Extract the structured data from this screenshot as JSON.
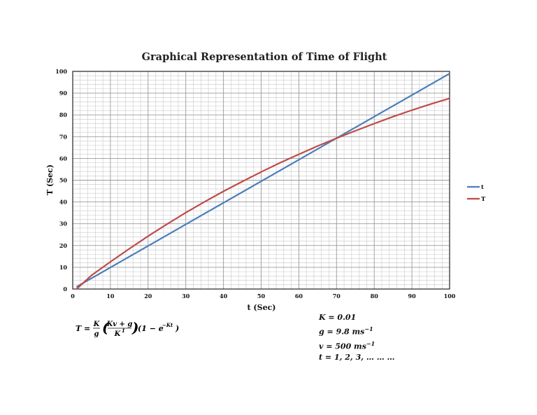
{
  "chart_data": {
    "type": "line",
    "title": "Graphical Representation of Time of Flight",
    "xlabel": "t (Sec)",
    "ylabel": "T (Sec)",
    "xlim": [
      0,
      100
    ],
    "ylim": [
      0,
      100
    ],
    "xticks": [
      "0",
      "10",
      "20",
      "30",
      "40",
      "50",
      "60",
      "70",
      "80",
      "90",
      "100"
    ],
    "yticks": [
      "0",
      "10",
      "20",
      "30",
      "40",
      "50",
      "60",
      "70",
      "80",
      "90",
      "100"
    ],
    "grid": true,
    "legend_position": "right",
    "series": [
      {
        "name": "t",
        "color": "#4a7ebb",
        "x": [
          1,
          100
        ],
        "y": [
          1,
          99
        ]
      },
      {
        "name": "T",
        "color": "#be4b48",
        "x": [
          1,
          5,
          10,
          15,
          20,
          25,
          30,
          35,
          40,
          45,
          50,
          55,
          60,
          65,
          70,
          75,
          80,
          85,
          90,
          95,
          100
        ],
        "y": [
          0,
          6.3,
          12.5,
          18.5,
          24.3,
          29.8,
          35.1,
          40.1,
          44.9,
          49.4,
          53.8,
          58.0,
          61.9,
          65.7,
          69.3,
          72.7,
          76.0,
          79.2,
          82.2,
          85.0,
          87.6
        ]
      }
    ]
  },
  "formula": {
    "lhs": "T =",
    "frac1_num": "K",
    "frac1_den": "g",
    "frac2_num": "Kv + g",
    "frac2_den": "K",
    "frac2_den_sup": "1",
    "tail": "(1 − e",
    "tail_sup": "−Kt",
    "tail_close": ")"
  },
  "params": {
    "k": "K = 0.01",
    "g": "g = 9.8 ms",
    "g_sup": "−1",
    "v": "v = 500 ms",
    "v_sup": "−1",
    "t": "t = 1, 2, 3, … … …"
  }
}
